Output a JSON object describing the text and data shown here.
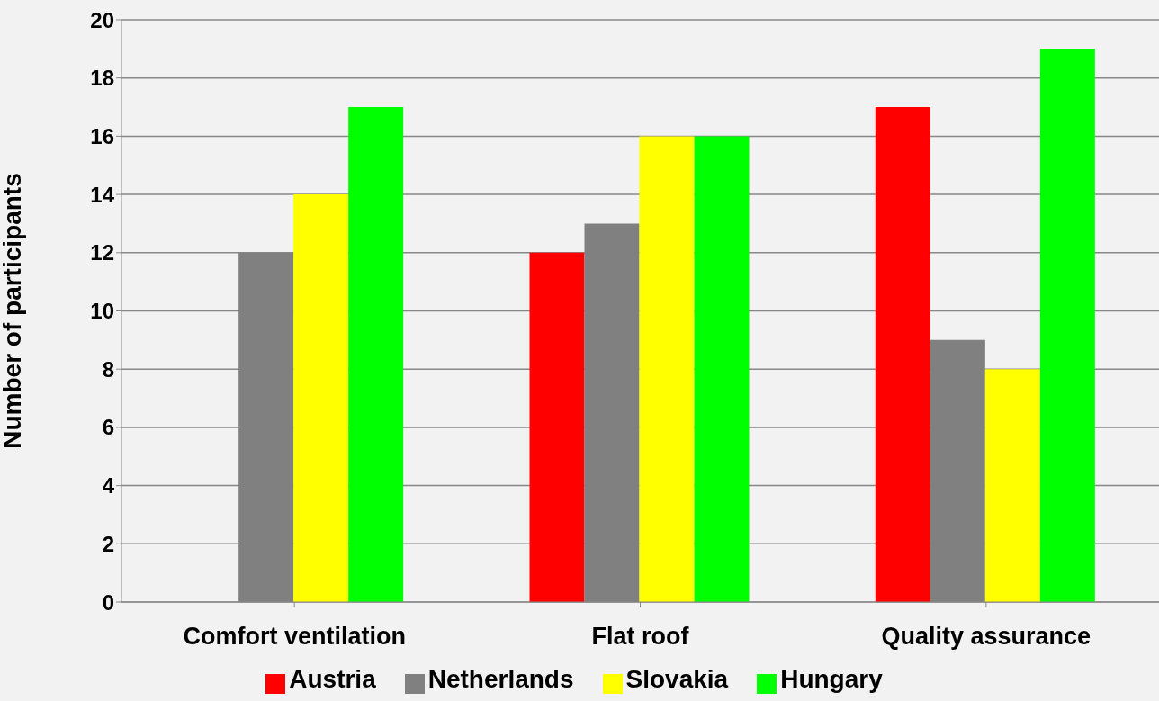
{
  "chart_data": {
    "type": "bar",
    "ylabel": "Number of participants",
    "categories": [
      "Comfort ventilation",
      "Flat roof",
      "Quality assurance"
    ],
    "series": [
      {
        "name": "Austria",
        "color": "#ff0000",
        "values": [
          null,
          12,
          17
        ]
      },
      {
        "name": "Netherlands",
        "color": "#808080",
        "values": [
          12,
          13,
          9
        ]
      },
      {
        "name": "Slovakia",
        "color": "#ffff00",
        "values": [
          14,
          16,
          8
        ]
      },
      {
        "name": "Hungary",
        "color": "#00ff00",
        "values": [
          17,
          16,
          19
        ]
      }
    ],
    "ylim": [
      0,
      20
    ],
    "yticks": [
      0,
      2,
      4,
      6,
      8,
      10,
      12,
      14,
      16,
      18,
      20
    ],
    "grid": "y",
    "legend": "bottom"
  }
}
